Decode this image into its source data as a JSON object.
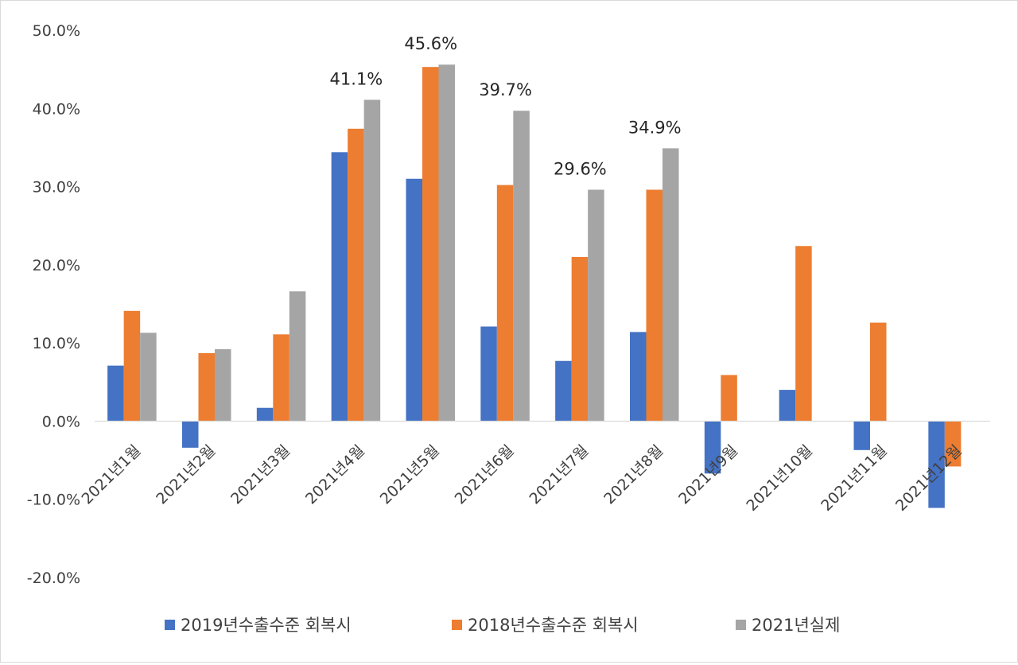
{
  "chart_data": {
    "type": "bar",
    "title": "",
    "xlabel": "",
    "ylabel": "",
    "ylim": [
      -20,
      50
    ],
    "ytick_step": 10,
    "grid": false,
    "legend_position": "bottom",
    "categories": [
      "2021년1월",
      "2021년2월",
      "2021년3월",
      "2021년4월",
      "2021년5월",
      "2021년6월",
      "2021년7월",
      "2021년8월",
      "2021년9월",
      "2021년10월",
      "2021년11월",
      "2021년12월"
    ],
    "series": [
      {
        "name": "2019년수출수준 회복시",
        "color": "#4472c4",
        "values": [
          7.1,
          -3.4,
          1.7,
          34.4,
          31.0,
          12.1,
          7.7,
          11.4,
          -6.7,
          4.0,
          -3.7,
          -11.1
        ]
      },
      {
        "name": "2018년수출수준 회복시",
        "color": "#ed7d31",
        "values": [
          14.1,
          8.7,
          11.1,
          37.4,
          45.3,
          30.2,
          21.0,
          29.6,
          5.9,
          22.4,
          12.6,
          -5.8
        ]
      },
      {
        "name": "2021년실제",
        "color": "#a5a5a5",
        "values": [
          11.3,
          9.2,
          16.6,
          41.1,
          45.6,
          39.7,
          29.6,
          34.9,
          null,
          null,
          null,
          null
        ]
      }
    ],
    "data_labels": [
      {
        "category_index": 3,
        "series_index": 2,
        "text": "41.1%"
      },
      {
        "category_index": 4,
        "series_index": 2,
        "text": "45.6%"
      },
      {
        "category_index": 5,
        "series_index": 2,
        "text": "39.7%"
      },
      {
        "category_index": 6,
        "series_index": 2,
        "text": "29.6%"
      },
      {
        "category_index": 7,
        "series_index": 2,
        "text": "34.9%"
      }
    ],
    "axis_color": "#d9d9d9"
  }
}
